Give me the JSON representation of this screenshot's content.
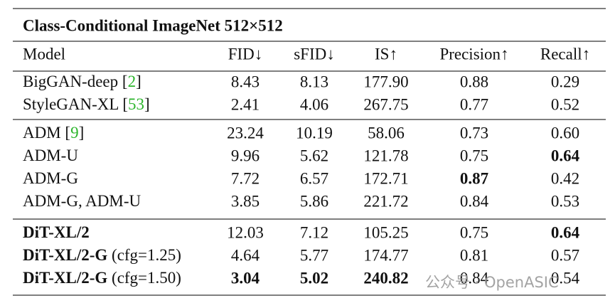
{
  "table": {
    "title": "Class-Conditional ImageNet 512×512",
    "header": [
      "Model",
      "FID↓",
      "sFID↓",
      "IS↑",
      "Precision↑",
      "Recall↑"
    ],
    "groups": [
      [
        {
          "model": "BigGAN-deep",
          "ref": "[2]",
          "cells": [
            "8.43",
            "8.13",
            "177.90",
            "0.88",
            "0.29"
          ],
          "bold": []
        },
        {
          "model": "StyleGAN-XL",
          "ref": "[53]",
          "cells": [
            "2.41",
            "4.06",
            "267.75",
            "0.77",
            "0.52"
          ],
          "bold": []
        }
      ],
      [
        {
          "model": "ADM",
          "ref": "[9]",
          "cells": [
            "23.24",
            "10.19",
            "58.06",
            "0.73",
            "0.60"
          ],
          "bold": []
        },
        {
          "model": "ADM-U",
          "cells": [
            "9.96",
            "5.62",
            "121.78",
            "0.75",
            "0.64"
          ],
          "bold": [
            4
          ]
        },
        {
          "model": "ADM-G",
          "cells": [
            "7.72",
            "6.57",
            "172.71",
            "0.87",
            "0.42"
          ],
          "bold": [
            3
          ]
        },
        {
          "model": "ADM-G, ADM-U",
          "cells": [
            "3.85",
            "5.86",
            "221.72",
            "0.84",
            "0.53"
          ],
          "bold": []
        }
      ],
      [
        {
          "model": "DiT-XL/2",
          "model_bold": true,
          "cells": [
            "12.03",
            "7.12",
            "105.25",
            "0.75",
            "0.64"
          ],
          "bold": [
            4
          ]
        },
        {
          "model": "DiT-XL/2-G",
          "model_bold": true,
          "suffix": "(cfg=1.25)",
          "cells": [
            "4.64",
            "5.77",
            "174.77",
            "0.81",
            "0.57"
          ],
          "bold": []
        },
        {
          "model": "DiT-XL/2-G",
          "model_bold": true,
          "suffix": "(cfg=1.50)",
          "cells": [
            "3.04",
            "5.02",
            "240.82",
            "0.84",
            "0.54"
          ],
          "bold": [
            0,
            1,
            2
          ]
        }
      ]
    ],
    "watermark": "公众号 · OpenASIC"
  }
}
